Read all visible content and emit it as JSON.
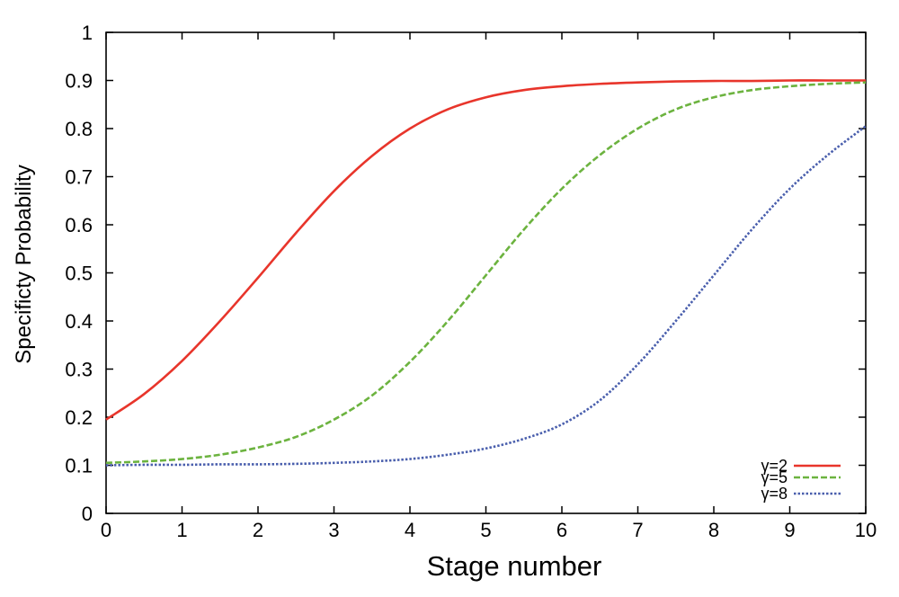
{
  "chart_data": {
    "type": "line",
    "xlabel": "Stage number",
    "ylabel": "Specificty Probability",
    "xlim": [
      0,
      10
    ],
    "ylim": [
      0,
      1
    ],
    "x_ticks": [
      "0",
      "1",
      "2",
      "3",
      "4",
      "5",
      "6",
      "7",
      "8",
      "9",
      "10"
    ],
    "y_ticks": [
      "0",
      "0.1",
      "0.2",
      "0.3",
      "0.4",
      "0.5",
      "0.6",
      "0.7",
      "0.8",
      "0.9",
      "1"
    ],
    "legend_position": "bottom-right",
    "grid": false,
    "x": [
      0,
      0.5,
      1,
      1.5,
      2,
      2.5,
      3,
      3.5,
      4,
      4.5,
      5,
      5.5,
      6,
      6.5,
      7,
      7.5,
      8,
      8.5,
      9,
      9.5,
      10
    ],
    "series": [
      {
        "name": "γ=2",
        "color": "#e8352b",
        "dash": "solid",
        "values": [
          0.195,
          0.248,
          0.317,
          0.4,
          0.49,
          0.583,
          0.67,
          0.743,
          0.8,
          0.84,
          0.865,
          0.88,
          0.888,
          0.893,
          0.896,
          0.898,
          0.899,
          0.899,
          0.9,
          0.9,
          0.9
        ]
      },
      {
        "name": "γ=5",
        "color": "#6cb33f",
        "dash": "dashed",
        "values": [
          0.105,
          0.108,
          0.113,
          0.122,
          0.137,
          0.159,
          0.195,
          0.245,
          0.315,
          0.4,
          0.495,
          0.59,
          0.675,
          0.745,
          0.8,
          0.84,
          0.865,
          0.88,
          0.888,
          0.893,
          0.896
        ]
      },
      {
        "name": "γ=8",
        "color": "#4a5fad",
        "dash": "dotted",
        "values": [
          0.1,
          0.101,
          0.101,
          0.102,
          0.102,
          0.103,
          0.105,
          0.108,
          0.113,
          0.122,
          0.135,
          0.155,
          0.185,
          0.235,
          0.31,
          0.4,
          0.495,
          0.59,
          0.675,
          0.745,
          0.805
        ]
      }
    ]
  }
}
